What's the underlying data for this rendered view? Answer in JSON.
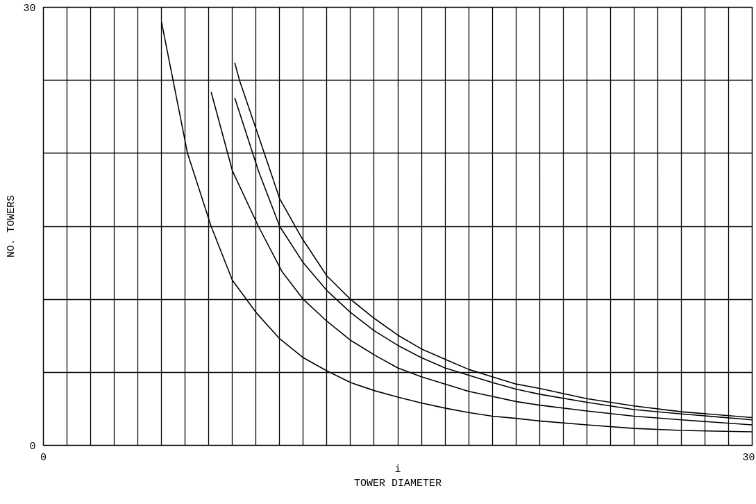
{
  "chart_data": {
    "type": "line",
    "xlabel": "TOWER DIAMETER",
    "ylabel": "NO. TOWERS",
    "annotations": [
      "i"
    ],
    "xlim": [
      0,
      30
    ],
    "ylim": [
      0,
      30
    ],
    "xticks": [
      0,
      {
        "value": 1,
        "label": null
      },
      {
        "value": 2,
        "label": null
      },
      {
        "value": 3,
        "label": null
      },
      {
        "value": 4,
        "label": null
      },
      {
        "value": 5,
        "label": null
      },
      {
        "value": 6,
        "label": null
      },
      {
        "value": 7,
        "label": null
      },
      {
        "value": 8,
        "label": null
      },
      {
        "value": 9,
        "label": null
      },
      {
        "value": 10,
        "label": null
      },
      {
        "value": 11,
        "label": null
      },
      {
        "value": 12,
        "label": null
      },
      {
        "value": 13,
        "label": null
      },
      {
        "value": 14,
        "label": null
      },
      {
        "value": 15,
        "label": null
      },
      {
        "value": 16,
        "label": null
      },
      {
        "value": 17,
        "label": null
      },
      {
        "value": 18,
        "label": null
      },
      {
        "value": 19,
        "label": null
      },
      {
        "value": 20,
        "label": null
      },
      {
        "value": 21,
        "label": null
      },
      {
        "value": 22,
        "label": null
      },
      {
        "value": 23,
        "label": null
      },
      {
        "value": 24,
        "label": null
      },
      {
        "value": 25,
        "label": null
      },
      {
        "value": 26,
        "label": null
      },
      {
        "value": 27,
        "label": null
      },
      {
        "value": 28,
        "label": null
      },
      {
        "value": 29,
        "label": null
      },
      30
    ],
    "yticks": [
      0,
      {
        "value": 5,
        "label": null
      },
      {
        "value": 10,
        "label": null
      },
      {
        "value": 15,
        "label": null
      },
      {
        "value": 20,
        "label": null
      },
      {
        "value": 25,
        "label": null
      },
      30
    ],
    "grid": true,
    "marker": "none",
    "line_style": "solid",
    "series": [
      {
        "color": "#000000",
        "x": [
          5.0,
          6.1,
          7.1,
          8.0,
          9.0,
          10.0,
          11.0,
          12.0,
          13.0,
          14.0,
          15.0,
          16.0,
          17.0,
          18.0,
          19.0,
          20.0,
          21.0,
          23.0,
          25.0,
          27.0,
          30.0
        ],
        "values": [
          29.0,
          20.0,
          15.0,
          11.3,
          9.1,
          7.3,
          6.0,
          5.1,
          4.3,
          3.75,
          3.3,
          2.9,
          2.55,
          2.25,
          2.0,
          1.85,
          1.67,
          1.4,
          1.16,
          1.02,
          0.93
        ]
      },
      {
        "color": "#000000",
        "x": [
          7.1,
          8.0,
          9.1,
          10.1,
          11.0,
          12.0,
          13.0,
          14.0,
          15.0,
          16.0,
          17.0,
          18.0,
          19.0,
          20.0,
          21.0,
          23.0,
          25.0,
          27.0,
          30.0
        ],
        "values": [
          24.2,
          18.8,
          15.0,
          11.9,
          10.0,
          8.5,
          7.2,
          6.2,
          5.3,
          4.7,
          4.2,
          3.7,
          3.35,
          3.0,
          2.75,
          2.35,
          2.0,
          1.75,
          1.4
        ]
      },
      {
        "color": "#000000",
        "x": [
          8.1,
          9.1,
          10.0,
          11.0,
          12.0,
          13.0,
          14.0,
          15.0,
          16.0,
          17.0,
          18.0,
          19.0,
          20.0,
          21.0,
          23.0,
          25.0,
          27.0,
          30.0
        ],
        "values": [
          23.8,
          18.8,
          15.0,
          12.5,
          10.6,
          9.1,
          7.85,
          6.85,
          6.0,
          5.3,
          4.8,
          4.3,
          3.85,
          3.5,
          2.95,
          2.45,
          2.15,
          1.75
        ]
      },
      {
        "color": "#000000",
        "x": [
          8.1,
          8.3,
          9.1,
          10.0,
          10.9,
          12.0,
          13.0,
          14.0,
          15.0,
          16.0,
          17.0,
          18.0,
          19.0,
          20.0,
          21.0,
          23.0,
          25.0,
          27.0,
          30.0
        ],
        "values": [
          26.2,
          25.0,
          21.2,
          16.9,
          14.3,
          11.6,
          10.0,
          8.7,
          7.55,
          6.6,
          5.9,
          5.2,
          4.7,
          4.2,
          3.9,
          3.2,
          2.7,
          2.3,
          1.9
        ]
      }
    ]
  }
}
